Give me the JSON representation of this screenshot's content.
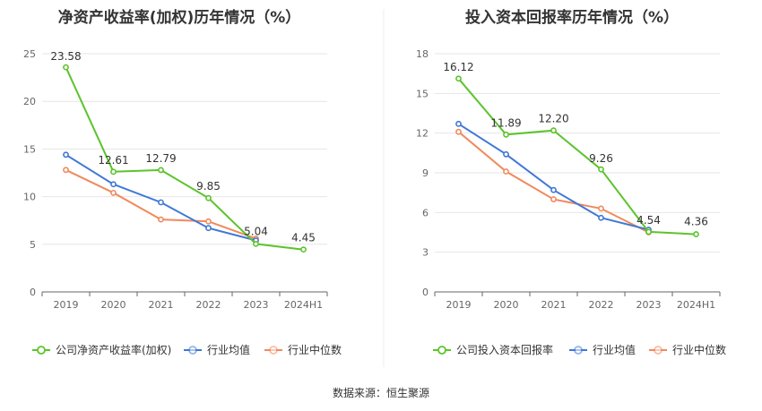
{
  "footer": {
    "source": "数据来源：恒生聚源"
  },
  "chart_data": [
    {
      "type": "line",
      "title": "净资产收益率(加权)历年情况（%）",
      "categories": [
        "2019",
        "2020",
        "2021",
        "2022",
        "2023",
        "2024H1"
      ],
      "ylim": [
        0,
        25
      ],
      "yticks": [
        "0",
        "5",
        "10",
        "15",
        "20",
        "25"
      ],
      "legend_position": "bottom",
      "grid": true,
      "series": [
        {
          "name": "公司净资产收益率(加权)",
          "color": "#5bc42c",
          "values": [
            23.58,
            12.61,
            12.79,
            9.85,
            5.04,
            4.45
          ],
          "labels": [
            "23.58",
            "12.61",
            "12.79",
            "9.85",
            "5.04",
            "4.45"
          ]
        },
        {
          "name": "行业均值",
          "color": "#3f78d6",
          "values": [
            14.4,
            11.3,
            9.4,
            6.7,
            5.4,
            null
          ]
        },
        {
          "name": "行业中位数",
          "color": "#f08a5d",
          "values": [
            12.8,
            10.4,
            7.6,
            7.4,
            5.6,
            null
          ]
        }
      ]
    },
    {
      "type": "line",
      "title": "投入资本回报率历年情况（%）",
      "categories": [
        "2019",
        "2020",
        "2021",
        "2022",
        "2023",
        "2024H1"
      ],
      "ylim": [
        0,
        18
      ],
      "yticks": [
        "0",
        "3",
        "6",
        "9",
        "12",
        "15",
        "18"
      ],
      "legend_position": "bottom",
      "grid": true,
      "series": [
        {
          "name": "公司投入资本回报率",
          "color": "#5bc42c",
          "values": [
            16.12,
            11.89,
            12.2,
            9.26,
            4.54,
            4.36
          ],
          "labels": [
            "16.12",
            "11.89",
            "12.20",
            "9.26",
            "4.54",
            "4.36"
          ]
        },
        {
          "name": "行业均值",
          "color": "#3f78d6",
          "values": [
            12.7,
            10.4,
            7.7,
            5.6,
            4.7,
            null
          ]
        },
        {
          "name": "行业中位数",
          "color": "#f08a5d",
          "values": [
            12.1,
            9.1,
            7.0,
            6.3,
            4.5,
            null
          ]
        }
      ]
    }
  ]
}
